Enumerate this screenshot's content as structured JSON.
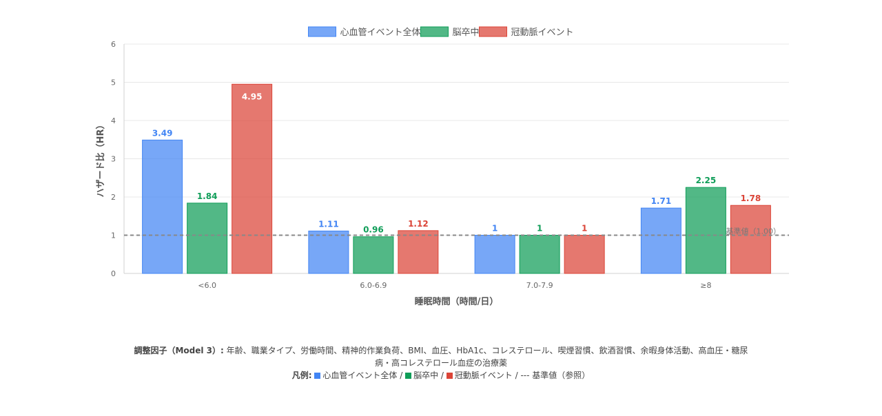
{
  "chart_data": {
    "type": "bar",
    "categories": [
      "<6.0",
      "6.0-6.9",
      "7.0-7.9",
      "≥8"
    ],
    "series": [
      {
        "name": "心血管イベント全体",
        "color": "#4285F4",
        "values": [
          3.49,
          1.11,
          1,
          1.71
        ],
        "labels": [
          "3.49",
          "1.11",
          "1",
          "1.71"
        ]
      },
      {
        "name": "脳卒中",
        "color": "#0F9D58",
        "values": [
          1.84,
          0.96,
          1,
          2.25
        ],
        "labels": [
          "1.84",
          "0.96",
          "1",
          "2.25"
        ]
      },
      {
        "name": "冠動脈イベント",
        "color": "#DB4437",
        "values": [
          4.95,
          1.12,
          1,
          1.78
        ],
        "labels": [
          "4.95",
          "1.12",
          "1",
          "1.78"
        ]
      }
    ],
    "xlabel": "睡眠時間（時間/日）",
    "ylabel": "ハザード比（HR）",
    "ylim": [
      0,
      6
    ],
    "yticks": [
      "0",
      "1",
      "2",
      "3",
      "4",
      "5",
      "6"
    ],
    "reference_line": {
      "value": 1,
      "label": "基準値（1.00）"
    },
    "legend_position": "top",
    "grid": true
  },
  "footnote": {
    "adjust_label": "調整因子（Model 3）:",
    "adjust_text": "年齢、職業タイプ、労働時間、精神的作業負荷、BMI、血圧、HbA1c、コレステロール、喫煙習慣、飲酒習慣、余暇身体活動、高血圧・糖尿病・高コレステロール血症の治療薬",
    "legend_label": "凡例:",
    "legend_items": [
      "心血管イベント全体",
      "脳卒中",
      "冠動脈イベント"
    ],
    "legend_separator": " / ",
    "legend_ref": "--- 基準値（参照）"
  }
}
